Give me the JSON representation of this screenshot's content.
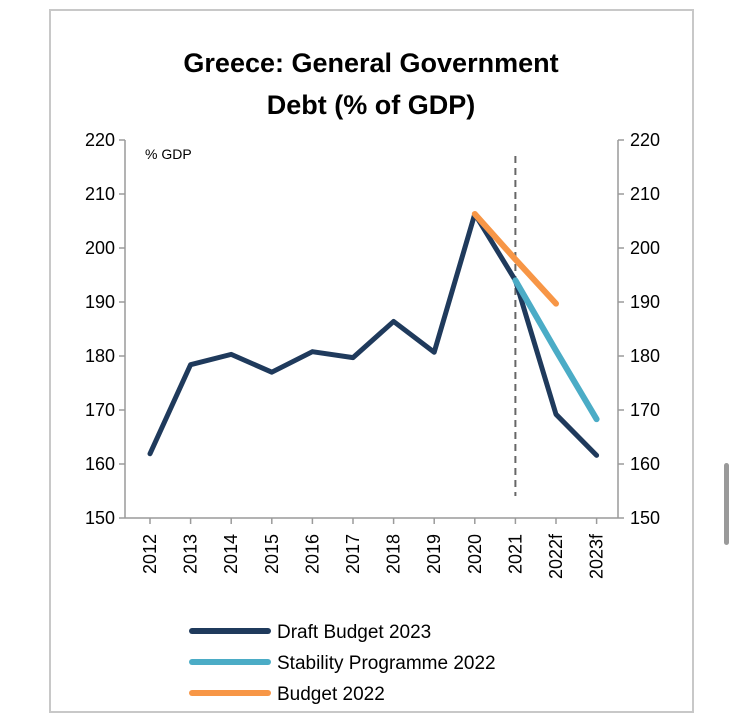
{
  "chart_data": {
    "type": "line",
    "title": [
      "Greece: General Government",
      "Debt (% of GDP)"
    ],
    "unit_label": "% GDP",
    "categories": [
      "2012",
      "2013",
      "2014",
      "2015",
      "2016",
      "2017",
      "2018",
      "2019",
      "2020",
      "2021",
      "2022f",
      "2023f"
    ],
    "ylim": [
      150,
      220
    ],
    "yticks": [
      150,
      160,
      170,
      180,
      190,
      200,
      210,
      220
    ],
    "right_axis": true,
    "vline_at": "2021",
    "legend_position": "bottom",
    "series": [
      {
        "name": "Draft Budget 2023",
        "color": "#1f3a5c",
        "values": [
          161.9,
          178.4,
          180.3,
          177.0,
          180.8,
          179.7,
          186.4,
          180.7,
          206.3,
          194.0,
          169.2,
          161.6
        ]
      },
      {
        "name": "Stability Programme 2022",
        "color": "#4bacc6",
        "values": [
          null,
          null,
          null,
          null,
          null,
          null,
          null,
          null,
          null,
          194.0,
          181.0,
          168.3
        ]
      },
      {
        "name": "Budget 2022",
        "color": "#f79646",
        "values": [
          null,
          null,
          null,
          null,
          null,
          null,
          null,
          null,
          206.3,
          197.9,
          189.7,
          null
        ]
      }
    ]
  }
}
